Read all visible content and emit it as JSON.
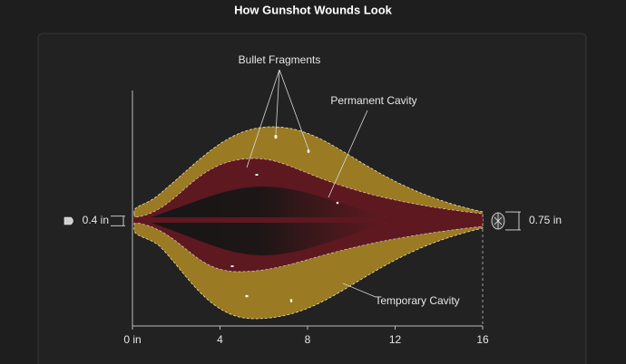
{
  "title": "How Gunshot Wounds Look",
  "annotations": {
    "fragments": "Bullet Fragments",
    "permanent": "Permanent Cavity",
    "temporary": "Temporary Cavity"
  },
  "entry_diameter": {
    "value": 0.4,
    "label": "0.4 in"
  },
  "exit_diameter": {
    "value": 0.75,
    "label": "0.75 in"
  },
  "axis": {
    "xlim": [
      0,
      16
    ],
    "xticks": [
      {
        "value": 0,
        "label": "0 in"
      },
      4,
      8,
      12,
      16
    ]
  }
}
